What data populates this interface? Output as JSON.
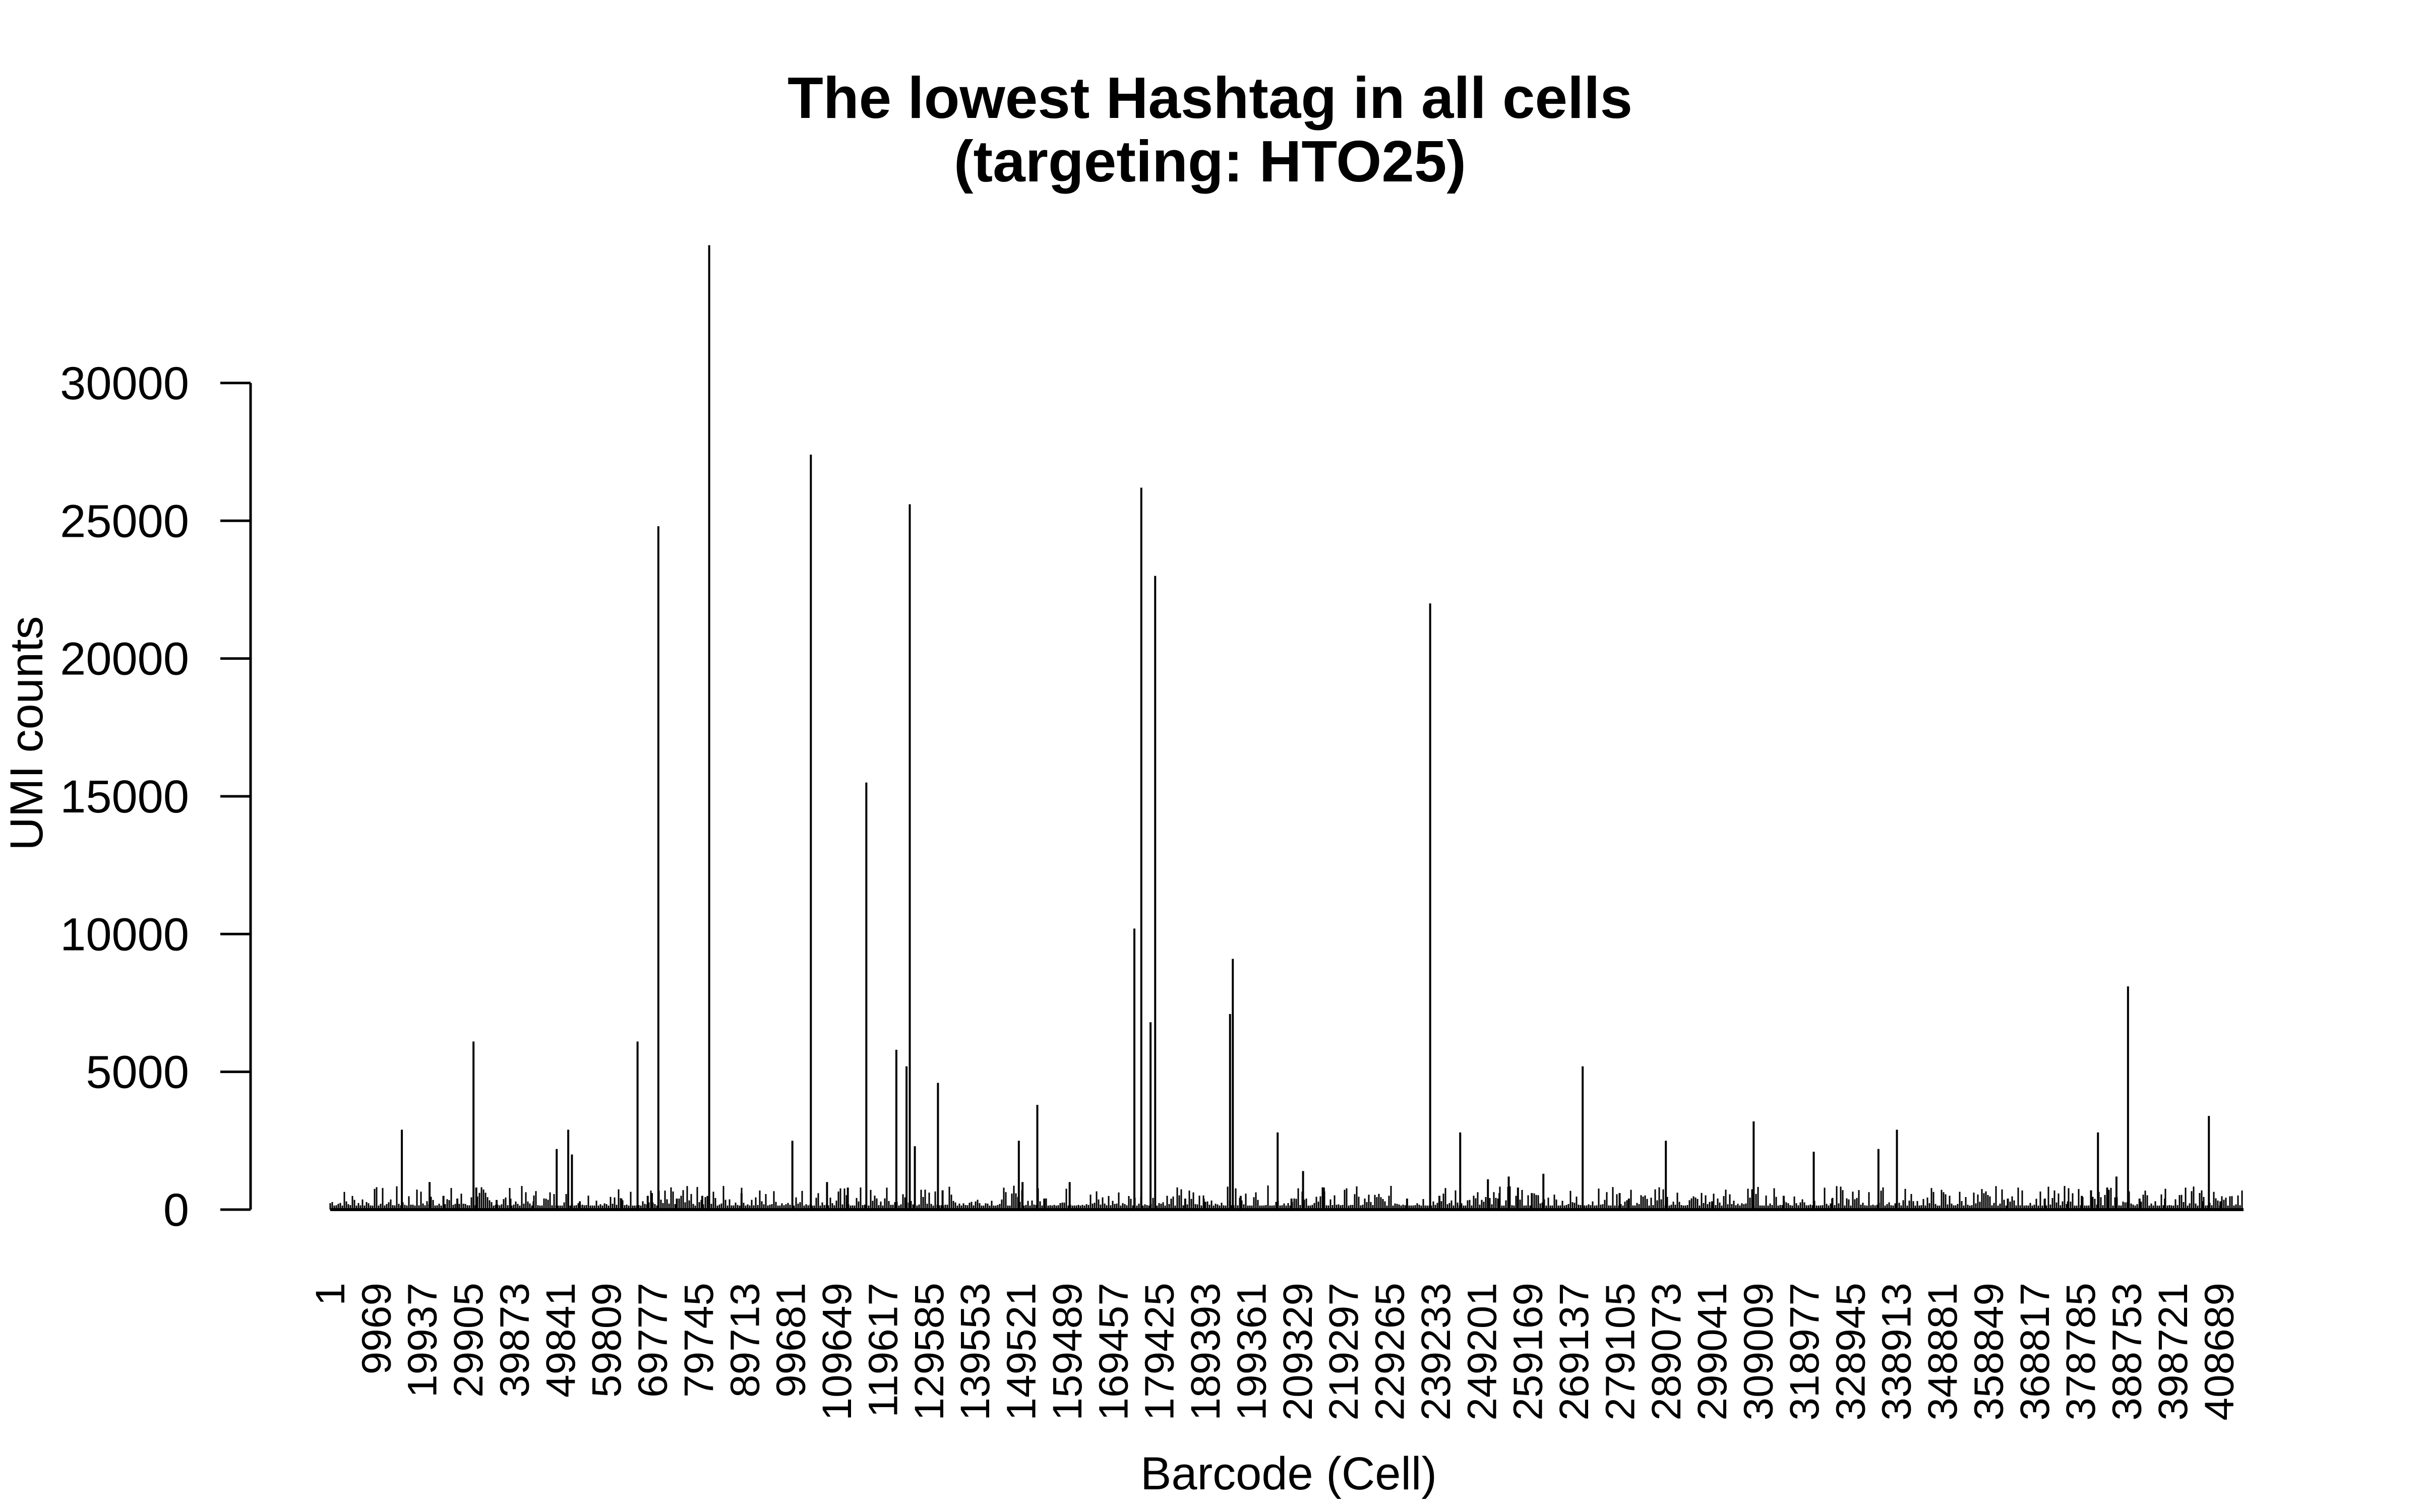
{
  "chart_data": {
    "type": "bar",
    "title": "The lowest Hashtag in all cells",
    "subtitle": "(targeting: HTO25)",
    "xlabel": "Barcode (Cell)",
    "ylabel": "UMI counts",
    "ylim": [
      0,
      35000
    ],
    "xlim": [
      1,
      414000
    ],
    "grid": false,
    "y_ticks": [
      0,
      5000,
      10000,
      15000,
      20000,
      25000,
      30000
    ],
    "y_tick_labels": [
      "0",
      "5000",
      "10000",
      "15000",
      "20000",
      "25000",
      "30000"
    ],
    "x_ticks": [
      1,
      9969,
      19937,
      29905,
      39873,
      49841,
      59809,
      69777,
      79745,
      89713,
      99681,
      109649,
      119617,
      129585,
      139553,
      149521,
      159489,
      169457,
      179425,
      189393,
      199361,
      209329,
      219297,
      229265,
      239233,
      249201,
      259169,
      269137,
      279105,
      289073,
      299041,
      309009,
      318977,
      328945,
      338913,
      348881,
      358849,
      368817,
      378785,
      388753,
      398721,
      408689
    ],
    "x_tick_labels": [
      "1",
      "9969",
      "19937",
      "29905",
      "39873",
      "49841",
      "59809",
      "69777",
      "79745",
      "89713",
      "99681",
      "109649",
      "119617",
      "129585",
      "139553",
      "149521",
      "159489",
      "169457",
      "179425",
      "189393",
      "199361",
      "209329",
      "219297",
      "229265",
      "239233",
      "249201",
      "259169",
      "269137",
      "279105",
      "289073",
      "299041",
      "309009",
      "318977",
      "328945",
      "338913",
      "348881",
      "358849",
      "368817",
      "378785",
      "388753",
      "398721",
      "408689"
    ],
    "bars": [
      {
        "x": 15500,
        "y": 2900
      },
      {
        "x": 21500,
        "y": 1000
      },
      {
        "x": 24500,
        "y": 500
      },
      {
        "x": 27500,
        "y": 400
      },
      {
        "x": 31000,
        "y": 6100
      },
      {
        "x": 31600,
        "y": 800
      },
      {
        "x": 36000,
        "y": 350
      },
      {
        "x": 39000,
        "y": 400
      },
      {
        "x": 44000,
        "y": 300
      },
      {
        "x": 49000,
        "y": 2200
      },
      {
        "x": 51500,
        "y": 2900
      },
      {
        "x": 52300,
        "y": 2000
      },
      {
        "x": 54000,
        "y": 300
      },
      {
        "x": 63000,
        "y": 400
      },
      {
        "x": 66500,
        "y": 6100
      },
      {
        "x": 68700,
        "y": 500
      },
      {
        "x": 69600,
        "y": 600
      },
      {
        "x": 71000,
        "y": 24800
      },
      {
        "x": 75000,
        "y": 400
      },
      {
        "x": 80500,
        "y": 500
      },
      {
        "x": 82000,
        "y": 35000
      },
      {
        "x": 89000,
        "y": 600
      },
      {
        "x": 100000,
        "y": 2500
      },
      {
        "x": 104000,
        "y": 27400
      },
      {
        "x": 107500,
        "y": 1000
      },
      {
        "x": 112000,
        "y": 800
      },
      {
        "x": 116000,
        "y": 15500
      },
      {
        "x": 122500,
        "y": 5800
      },
      {
        "x": 124700,
        "y": 5200
      },
      {
        "x": 125400,
        "y": 25600
      },
      {
        "x": 126500,
        "y": 2300
      },
      {
        "x": 131500,
        "y": 4600
      },
      {
        "x": 132500,
        "y": 700
      },
      {
        "x": 149000,
        "y": 2500
      },
      {
        "x": 149800,
        "y": 1000
      },
      {
        "x": 153000,
        "y": 3800
      },
      {
        "x": 154500,
        "y": 400
      },
      {
        "x": 160000,
        "y": 1000
      },
      {
        "x": 174000,
        "y": 10200
      },
      {
        "x": 175500,
        "y": 26200
      },
      {
        "x": 177500,
        "y": 6800
      },
      {
        "x": 178500,
        "y": 23000
      },
      {
        "x": 185000,
        "y": 400
      },
      {
        "x": 189000,
        "y": 400
      },
      {
        "x": 194700,
        "y": 7100
      },
      {
        "x": 195300,
        "y": 9100
      },
      {
        "x": 197000,
        "y": 500
      },
      {
        "x": 205000,
        "y": 2800
      },
      {
        "x": 208000,
        "y": 400
      },
      {
        "x": 210500,
        "y": 1400
      },
      {
        "x": 215000,
        "y": 800
      },
      {
        "x": 233000,
        "y": 400
      },
      {
        "x": 238000,
        "y": 22000
      },
      {
        "x": 240000,
        "y": 500
      },
      {
        "x": 244500,
        "y": 2800
      },
      {
        "x": 250500,
        "y": 1100
      },
      {
        "x": 253000,
        "y": 600
      },
      {
        "x": 255000,
        "y": 1200
      },
      {
        "x": 257000,
        "y": 800
      },
      {
        "x": 260000,
        "y": 600
      },
      {
        "x": 262500,
        "y": 1300
      },
      {
        "x": 271000,
        "y": 5200
      },
      {
        "x": 279000,
        "y": 600
      },
      {
        "x": 281000,
        "y": 400
      },
      {
        "x": 289000,
        "y": 2500
      },
      {
        "x": 299000,
        "y": 300
      },
      {
        "x": 308000,
        "y": 3200
      },
      {
        "x": 314500,
        "y": 500
      },
      {
        "x": 321000,
        "y": 2100
      },
      {
        "x": 325000,
        "y": 400
      },
      {
        "x": 335000,
        "y": 2200
      },
      {
        "x": 339000,
        "y": 2900
      },
      {
        "x": 363000,
        "y": 400
      },
      {
        "x": 371000,
        "y": 400
      },
      {
        "x": 376000,
        "y": 300
      },
      {
        "x": 379000,
        "y": 500
      },
      {
        "x": 381000,
        "y": 700
      },
      {
        "x": 382500,
        "y": 2800
      },
      {
        "x": 384500,
        "y": 800
      },
      {
        "x": 386500,
        "y": 1200
      },
      {
        "x": 389000,
        "y": 8100
      },
      {
        "x": 391500,
        "y": 400
      },
      {
        "x": 397000,
        "y": 400
      },
      {
        "x": 405000,
        "y": 300
      },
      {
        "x": 406500,
        "y": 3400
      },
      {
        "x": 409000,
        "y": 300
      }
    ]
  }
}
